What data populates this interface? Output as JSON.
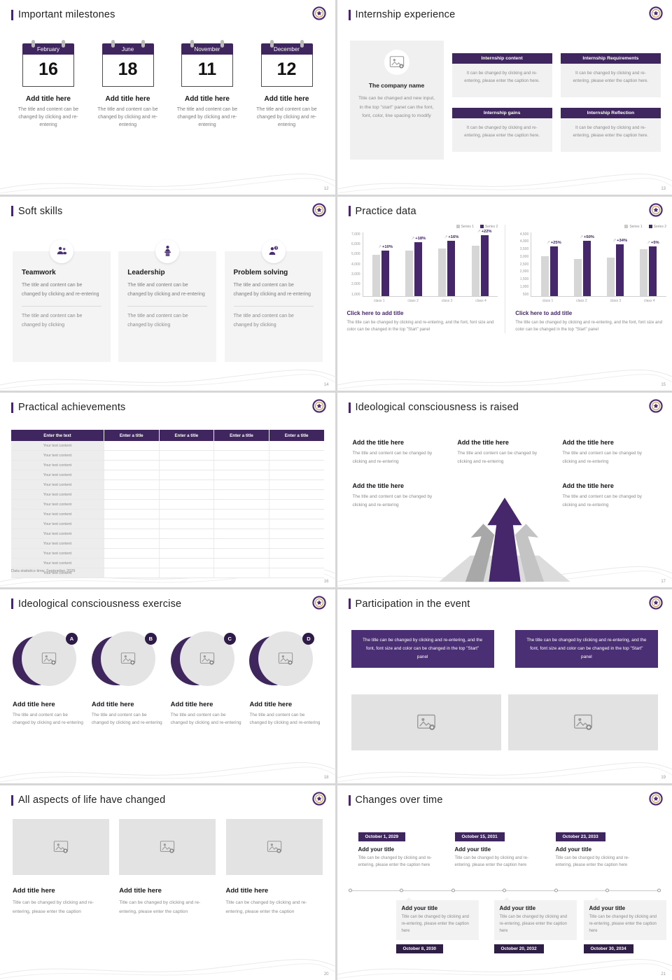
{
  "theme": {
    "accent": "#46276b",
    "accent_dark": "#33204e",
    "header_purple": "#40265e",
    "series1_color": "#d6d6d6",
    "series2_color": "#46276b"
  },
  "slides": {
    "milestones": {
      "title": "Important milestones",
      "page": "12",
      "items": [
        {
          "month": "February",
          "day": "16",
          "heading": "Add title here",
          "body": "The title and content can be changed by clicking and re-entering"
        },
        {
          "month": "June",
          "day": "18",
          "heading": "Add title here",
          "body": "The title and content can be changed by clicking and re-entering"
        },
        {
          "month": "November",
          "day": "11",
          "heading": "Add title here",
          "body": "The title and content can be changed by clicking and re-entering"
        },
        {
          "month": "December",
          "day": "12",
          "heading": "Add title here",
          "body": "The title and content can be changed by clicking and re-entering"
        }
      ]
    },
    "internship": {
      "title": "Internship experience",
      "page": "13",
      "company_name": "The company name",
      "company_body": "Title can be changed and new input, in the top \"start\" panel can the font, font, color, line spacing to modify",
      "blocks": [
        {
          "label": "Internship content",
          "caption": "It can be changed by clicking and re-entering, please enter the caption here."
        },
        {
          "label": "Internship Requirements",
          "caption": "It can be changed by clicking and re-entering, please enter the caption here."
        },
        {
          "label": "Internship gains",
          "caption": "It can be changed by clicking and re-entering, please enter the caption here."
        },
        {
          "label": "Internship Reflection",
          "caption": "It can be changed by clicking and re-entering, please enter the caption here."
        }
      ]
    },
    "soft_skills": {
      "title": "Soft skills",
      "page": "14",
      "cards": [
        {
          "name": "Teamwork",
          "body": "The title and content can be changed by clicking and re-entering",
          "footer": "The title and content can be changed by clicking"
        },
        {
          "name": "Leadership",
          "body": "The title and content can be changed by clicking and re-entering",
          "footer": "The title and content can be changed by clicking"
        },
        {
          "name": "Problem solving",
          "body": "The title and content can be changed by clicking and re-entering",
          "footer": "The title and content can be changed by clicking"
        }
      ]
    },
    "practice": {
      "title": "Practice data",
      "page": "15",
      "panels": [
        {
          "link": "Click here to add title",
          "caption": "The title can be changed by clicking and re-entering, and the font, font size and color can be changed in the top \"Start\" panel"
        },
        {
          "link": "Click here to add title",
          "caption": "The title can be changed by clicking and re-entering, and the font, font size and color can be changed in the top \"Start\" panel"
        }
      ]
    },
    "achievements": {
      "title": "Practical achievements",
      "page": "16",
      "header": [
        "Enter the text",
        "Enter a title",
        "Enter a title",
        "Enter a title",
        "Enter a title"
      ],
      "rows": [
        "Your text content",
        "Your text content",
        "Your text content",
        "Your text content",
        "Your text content",
        "Your text content",
        "Your text content",
        "Your text content",
        "Your text content",
        "Your text content",
        "Your text content",
        "Your text content",
        "Your text content",
        "Your text content"
      ],
      "footnote": "Data statistics time: September 2029"
    },
    "raised": {
      "title": "Ideological consciousness is raised",
      "page": "17",
      "blocks": [
        {
          "heading": "Add the title here",
          "body": "The title and content can be changed by clicking and re-entering"
        },
        {
          "heading": "Add the title here",
          "body": "The title and content can be changed by clicking and re-entering"
        },
        {
          "heading": "Add the title here",
          "body": "The title and content can be changed by clicking and re-entering"
        },
        {
          "heading": "Add the title here",
          "body": "The title and content can be changed by clicking and re-entering"
        },
        {
          "heading": "Add the title here",
          "body": "The title and content can be changed by clicking and re-entering"
        }
      ]
    },
    "exercise": {
      "title": "Ideological consciousness exercise",
      "page": "18",
      "items": [
        {
          "letter": "A",
          "heading": "Add title here",
          "body": "The title and content can be changed by clicking and re-entering"
        },
        {
          "letter": "B",
          "heading": "Add title here",
          "body": "The title and content can be changed by clicking and re-entering"
        },
        {
          "letter": "C",
          "heading": "Add title here",
          "body": "The title and content can be changed by clicking and re-entering"
        },
        {
          "letter": "D",
          "heading": "Add title here",
          "body": "The title and content can be changed by clicking and re-entering"
        }
      ]
    },
    "participation": {
      "title": "Participation in the event",
      "page": "19",
      "boxes": [
        "The title can be changed by clicking and re-entering, and the font, font size and color can be changed in the top \"Start\" panel",
        "The title can be changed by clicking and re-entering, and the font, font size and color can be changed in the top \"Start\" panel"
      ]
    },
    "life": {
      "title": "All aspects of life have changed",
      "page": "20",
      "cards": [
        {
          "heading": "Add title here",
          "body": "Title can be changed by clicking and re-entering, please enter the caption"
        },
        {
          "heading": "Add title here",
          "body": "Title can be changed by clicking and re-entering, please enter the caption"
        },
        {
          "heading": "Add title here",
          "body": "Title can be changed by clicking and re-entering, please enter the caption"
        }
      ]
    },
    "timeline": {
      "title": "Changes over time",
      "page": "21",
      "top": [
        {
          "date": "October 1, 2029",
          "heading": "Add your title",
          "body": "Title can be changed by clicking and re-entering, please enter the caption here"
        },
        {
          "date": "October 15, 2031",
          "heading": "Add your title",
          "body": "Title can be changed by clicking and re-entering, please enter the caption here"
        },
        {
          "date": "October 23, 2033",
          "heading": "Add your title",
          "body": "Title can be changed by clicking and re-entering, please enter the caption here"
        }
      ],
      "bottom": [
        {
          "date": "October 8, 2030",
          "heading": "Add your title",
          "body": "Title can be changed by clicking and re-entering, please enter the caption here"
        },
        {
          "date": "October 20, 2032",
          "heading": "Add your title",
          "body": "Title can be changed by clicking and re-entering, please enter the caption here"
        },
        {
          "date": "October 30, 2034",
          "heading": "Add your title",
          "body": "Title can be changed by clicking and re-entering, please enter the caption here"
        }
      ]
    }
  },
  "chart_data": [
    {
      "type": "bar",
      "title": "Click here to add title",
      "categories": [
        "class 1",
        "class 2",
        "class 3",
        "class 4"
      ],
      "series": [
        {
          "name": "Series 1",
          "values": [
            4500,
            5000,
            5200,
            5500
          ]
        },
        {
          "name": "Series 2",
          "values": [
            4950,
            5900,
            6050,
            6700
          ]
        }
      ],
      "bar_labels": [
        "+10%",
        "+18%",
        "+16%",
        "+22%"
      ],
      "ylim": [
        0,
        7000
      ],
      "yticks": [
        "7,000",
        "6,000",
        "5,000",
        "4,000",
        "3,000",
        "2,000",
        "1,000"
      ],
      "grid": false,
      "legend_position": "top-right"
    },
    {
      "type": "bar",
      "title": "Click here to add title",
      "categories": [
        "class 1",
        "class 2",
        "class 3",
        "class 4"
      ],
      "series": [
        {
          "name": "Series 1",
          "values": [
            2800,
            2600,
            2700,
            3300
          ]
        },
        {
          "name": "Series 2",
          "values": [
            3500,
            3900,
            3620,
            3470
          ]
        }
      ],
      "bar_labels": [
        "+25%",
        "+50%",
        "+34%",
        "+5%"
      ],
      "ylim": [
        0,
        4500
      ],
      "yticks": [
        "4,500",
        "4,000",
        "3,500",
        "3,000",
        "2,500",
        "2,000",
        "1,500",
        "1,000",
        "500"
      ],
      "grid": false,
      "legend_position": "top-right"
    }
  ]
}
